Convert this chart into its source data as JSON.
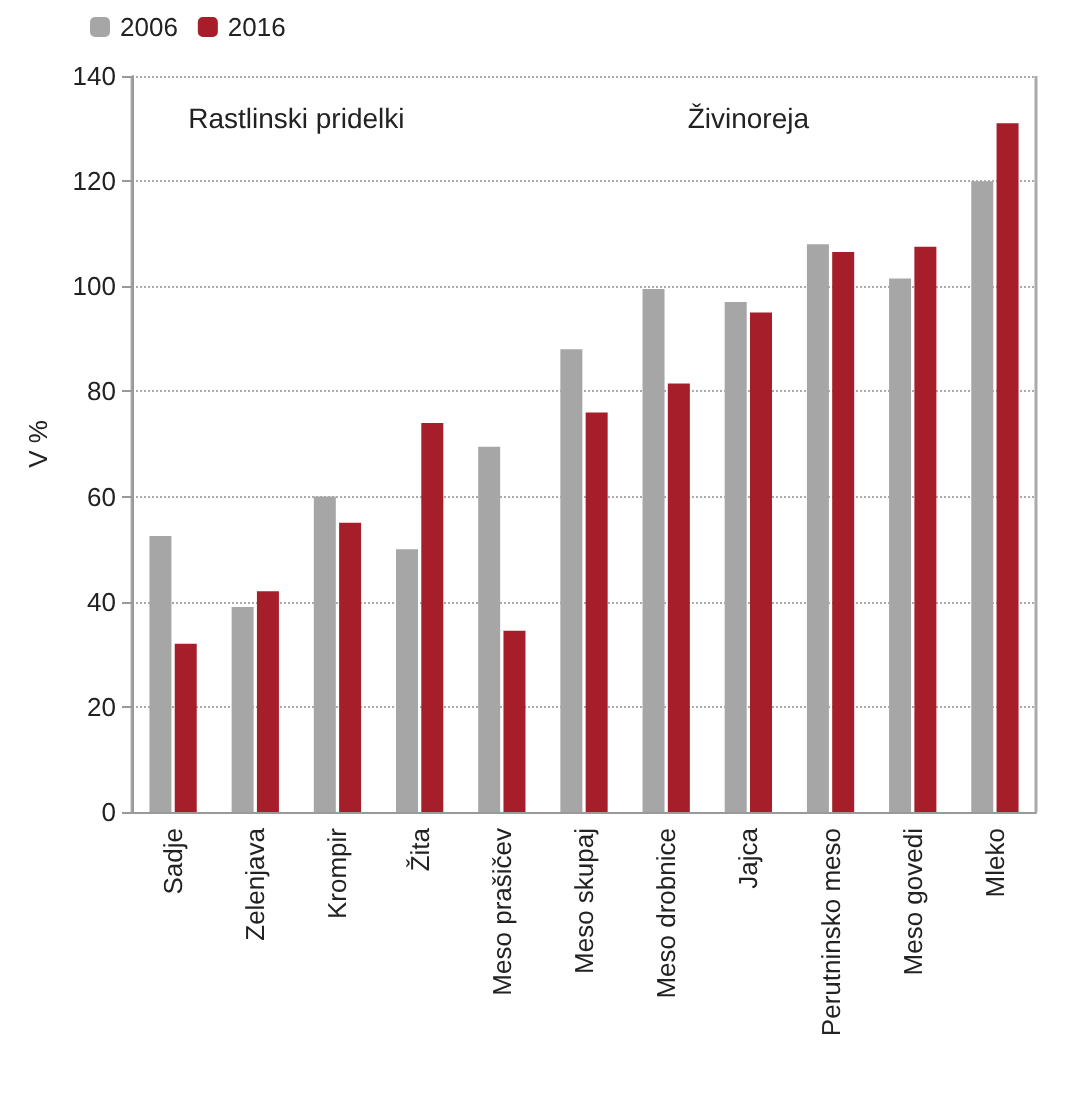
{
  "chart_data": {
    "type": "bar",
    "ylabel": "V %",
    "categories": [
      "Sadje",
      "Zelenjava",
      "Krompir",
      "Žita",
      "Meso prašičev",
      "Meso skupaj",
      "Meso drobnice",
      "Jajca",
      "Perutninsko meso",
      "Meso govedi",
      "Mleko"
    ],
    "series": [
      {
        "name": "2006",
        "color": "#a6a6a6",
        "values": [
          52.5,
          39,
          60,
          50,
          69.5,
          88,
          99.5,
          97,
          108,
          101.5,
          120
        ]
      },
      {
        "name": "2016",
        "color": "#a51e2a",
        "values": [
          32,
          42,
          55,
          74,
          34.5,
          76,
          81.5,
          95,
          106.5,
          107.5,
          131
        ]
      }
    ],
    "ylim": [
      0,
      140
    ],
    "yticks": [
      0,
      20,
      40,
      60,
      80,
      100,
      120,
      140
    ],
    "grid": "y",
    "legend": "top left",
    "annotations": [
      "Rastlinski pridelki",
      "Živinoreja"
    ]
  }
}
